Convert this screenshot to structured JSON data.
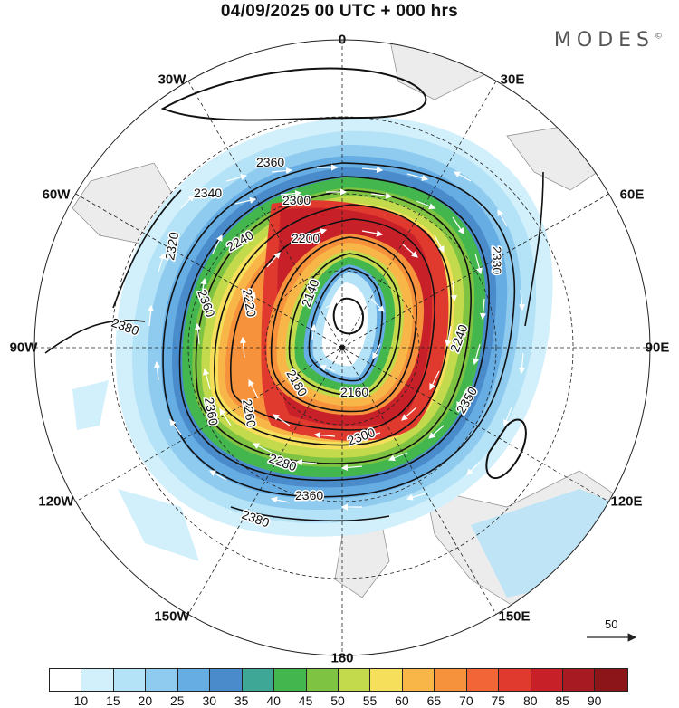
{
  "header": {
    "title": "04/09/2025  00 UTC  + 000 hrs",
    "brand": "MODES",
    "brand_mark": "©"
  },
  "map": {
    "projection": "polar-stereographic-south",
    "longitude_labels": [
      "0",
      "30E",
      "60E",
      "90E",
      "120E",
      "150E",
      "180",
      "150W",
      "120W",
      "90W",
      "60W",
      "30W"
    ],
    "contour_labels": [
      "2360",
      "2340",
      "2300",
      "2200",
      "2320",
      "2240",
      "2380",
      "2140",
      "2360",
      "2330",
      "2240",
      "2220",
      "2180",
      "2160",
      "2350",
      "2260",
      "2280",
      "2360",
      "2380",
      "2300",
      "2360"
    ],
    "filled_variable_colors_note": "wind speed shading",
    "reference_vector": {
      "value": "50"
    }
  },
  "colorbar": {
    "colors": [
      "#ffffff",
      "#d2f0fb",
      "#b4e2f7",
      "#8fcaef",
      "#66ade3",
      "#4a8ccb",
      "#3fa796",
      "#43b64e",
      "#7ec342",
      "#c3da4c",
      "#f6e05b",
      "#f8b649",
      "#f6923c",
      "#f26536",
      "#e03a2f",
      "#c82028",
      "#a81a22",
      "#8b1518"
    ],
    "tick_labels": [
      "10",
      "15",
      "20",
      "25",
      "30",
      "35",
      "40",
      "45",
      "50",
      "55",
      "60",
      "65",
      "70",
      "75",
      "80",
      "85",
      "90"
    ]
  }
}
